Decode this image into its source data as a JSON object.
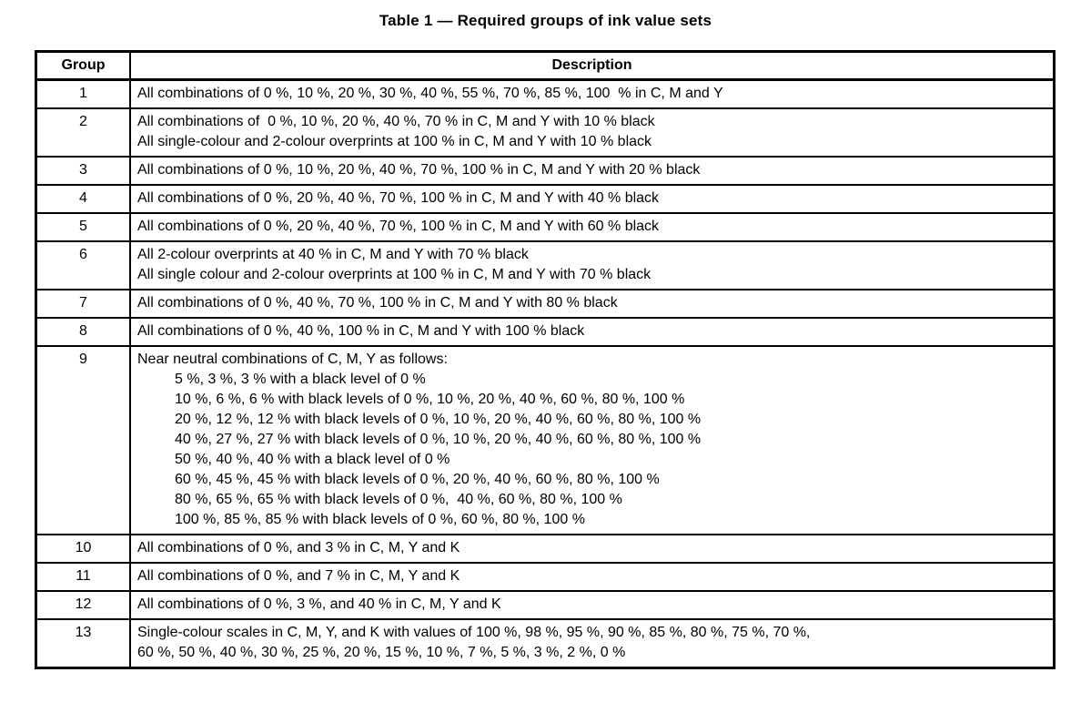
{
  "title": "Table 1 — Required groups of ink value sets",
  "colors": {
    "text": "#000000",
    "border": "#000000",
    "background": "#ffffff"
  },
  "table": {
    "headers": {
      "group": "Group",
      "description": "Description"
    },
    "rows": [
      {
        "group": "1",
        "lines": [
          {
            "text": "All combinations of 0 %, 10 %, 20 %, 30 %, 40 %, 55 %, 70 %, 85 %, 100  % in C, M and Y",
            "indent": false
          }
        ]
      },
      {
        "group": "2",
        "lines": [
          {
            "text": "All combinations of  0 %, 10 %, 20 %, 40 %, 70 % in C, M and Y with 10 % black",
            "indent": false
          },
          {
            "text": "All single-colour and 2-colour overprints at 100 % in C, M and Y with 10 % black",
            "indent": false
          }
        ]
      },
      {
        "group": "3",
        "lines": [
          {
            "text": "All combinations of 0 %, 10 %, 20 %, 40 %, 70 %, 100 % in C, M and Y with 20 % black",
            "indent": false
          }
        ]
      },
      {
        "group": "4",
        "lines": [
          {
            "text": "All combinations of 0 %, 20 %, 40 %, 70 %, 100 % in C, M and Y with 40 % black",
            "indent": false
          }
        ]
      },
      {
        "group": "5",
        "lines": [
          {
            "text": "All combinations of 0 %, 20 %, 40 %, 70 %, 100 % in C, M and Y with 60 % black",
            "indent": false
          }
        ]
      },
      {
        "group": "6",
        "lines": [
          {
            "text": "All 2-colour overprints at 40 % in C, M and Y with 70 % black",
            "indent": false
          },
          {
            "text": "All single colour and 2-colour overprints at 100 % in C, M and Y with 70 % black",
            "indent": false
          }
        ]
      },
      {
        "group": "7",
        "lines": [
          {
            "text": "All combinations of 0 %, 40 %, 70 %, 100 % in C, M and Y with 80 % black",
            "indent": false
          }
        ]
      },
      {
        "group": "8",
        "lines": [
          {
            "text": "All combinations of 0 %, 40 %, 100 % in C, M and Y with 100 % black",
            "indent": false
          }
        ]
      },
      {
        "group": "9",
        "lines": [
          {
            "text": "Near neutral combinations of C, M, Y as follows:",
            "indent": false
          },
          {
            "text": "5 %, 3 %, 3 % with a black level of 0 %",
            "indent": true
          },
          {
            "text": "10 %, 6 %, 6 % with black levels of 0 %, 10 %, 20 %, 40 %, 60 %, 80 %, 100 %",
            "indent": true
          },
          {
            "text": "20 %, 12 %, 12 % with black levels of 0 %, 10 %, 20 %, 40 %, 60 %, 80 %, 100 %",
            "indent": true
          },
          {
            "text": "40 %, 27 %, 27 % with black levels of 0 %, 10 %, 20 %, 40 %, 60 %, 80 %, 100 %",
            "indent": true
          },
          {
            "text": "50 %, 40 %, 40 % with a black level of 0 %",
            "indent": true
          },
          {
            "text": "60 %, 45 %, 45 % with black levels of 0 %, 20 %, 40 %, 60 %, 80 %, 100 %",
            "indent": true
          },
          {
            "text": "80 %, 65 %, 65 % with black levels of 0 %,  40 %, 60 %, 80 %, 100 %",
            "indent": true
          },
          {
            "text": "100 %, 85 %, 85 % with black levels of 0 %, 60 %, 80 %, 100 %",
            "indent": true
          }
        ]
      },
      {
        "group": "10",
        "lines": [
          {
            "text": "All combinations of 0 %, and 3 % in C, M, Y and K",
            "indent": false
          }
        ]
      },
      {
        "group": "11",
        "lines": [
          {
            "text": "All combinations of 0 %, and 7 % in C, M, Y and K",
            "indent": false
          }
        ]
      },
      {
        "group": "12",
        "lines": [
          {
            "text": "All combinations of 0 %, 3 %, and 40 % in C, M, Y and K",
            "indent": false
          }
        ]
      },
      {
        "group": "13",
        "lines": [
          {
            "text": "Single-colour scales in C, M, Y, and K with values of 100 %, 98 %, 95 %, 90 %, 85 %, 80 %, 75 %, 70 %,",
            "indent": false
          },
          {
            "text": "60 %, 50 %, 40 %, 30 %, 25 %, 20 %, 15 %, 10 %, 7 %, 5 %, 3 %, 2 %, 0 %",
            "indent": false
          }
        ]
      }
    ]
  }
}
